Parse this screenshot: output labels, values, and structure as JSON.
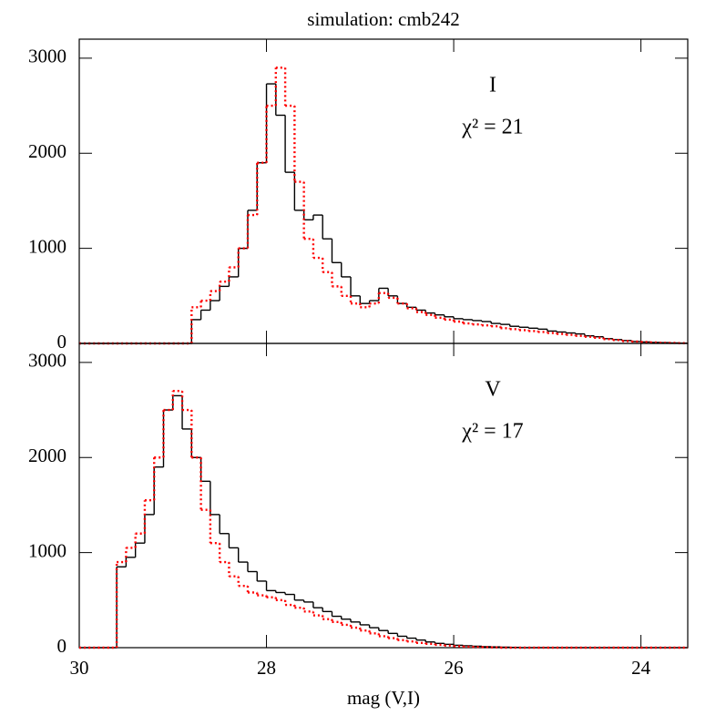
{
  "chart_data": [
    {
      "type": "histogram",
      "title": "simulation: cmb242",
      "annotations": [
        "I",
        "χ² = 21"
      ],
      "bins": [
        30,
        29.9,
        29.8,
        29.7,
        29.6,
        29.5,
        29.4,
        29.3,
        29.2,
        29.1,
        29,
        28.9,
        28.8,
        28.7,
        28.6,
        28.5,
        28.4,
        28.3,
        28.2,
        28.1,
        28,
        27.9,
        27.8,
        27.7,
        27.6,
        27.5,
        27.4,
        27.3,
        27.2,
        27.1,
        27,
        26.9,
        26.8,
        26.7,
        26.6,
        26.5,
        26.4,
        26.3,
        26.2,
        26.1,
        26,
        25.9,
        25.8,
        25.7,
        25.6,
        25.5,
        25.4,
        25.3,
        25.2,
        25.1,
        25,
        24.9,
        24.8,
        24.7,
        24.6,
        24.5,
        24.4,
        24.3,
        24.2,
        24.1,
        24,
        23.9,
        23.8,
        23.7,
        23.6,
        23.5
      ],
      "series": [
        {
          "color": "#000000",
          "style": "solid",
          "values": [
            0,
            0,
            0,
            0,
            0,
            0,
            0,
            0,
            0,
            0,
            0,
            0,
            250,
            350,
            450,
            600,
            700,
            1000,
            1400,
            1900,
            2730,
            2400,
            1800,
            1400,
            1300,
            1350,
            1100,
            850,
            700,
            500,
            420,
            450,
            580,
            500,
            420,
            380,
            350,
            320,
            300,
            280,
            260,
            250,
            240,
            230,
            210,
            200,
            180,
            170,
            160,
            150,
            130,
            120,
            110,
            100,
            80,
            70,
            50,
            40,
            30,
            20,
            15,
            10,
            8,
            5,
            3
          ]
        },
        {
          "color": "#ff0000",
          "style": "dotted",
          "values": [
            0,
            0,
            0,
            0,
            0,
            0,
            0,
            0,
            0,
            0,
            0,
            0,
            380,
            450,
            550,
            650,
            800,
            1000,
            1350,
            1900,
            2500,
            2900,
            2500,
            1700,
            1100,
            900,
            750,
            600,
            500,
            420,
            380,
            420,
            530,
            480,
            420,
            370,
            330,
            300,
            270,
            250,
            230,
            210,
            200,
            190,
            180,
            160,
            150,
            140,
            130,
            120,
            110,
            100,
            90,
            80,
            70,
            60,
            45,
            35,
            25,
            20,
            15,
            10,
            7,
            5,
            3
          ]
        }
      ],
      "xlim": [
        30,
        23.5
      ],
      "xticks": [
        30,
        28,
        26,
        24
      ],
      "ylim": [
        0,
        3200
      ],
      "yticks": [
        0,
        1000,
        2000,
        3000
      ]
    },
    {
      "type": "histogram",
      "annotations": [
        "V",
        "χ² = 17"
      ],
      "xlabel": "mag (V,I)",
      "bins": [
        30,
        29.9,
        29.8,
        29.7,
        29.6,
        29.5,
        29.4,
        29.3,
        29.2,
        29.1,
        29,
        28.9,
        28.8,
        28.7,
        28.6,
        28.5,
        28.4,
        28.3,
        28.2,
        28.1,
        28,
        27.9,
        27.8,
        27.7,
        27.6,
        27.5,
        27.4,
        27.3,
        27.2,
        27.1,
        27,
        26.9,
        26.8,
        26.7,
        26.6,
        26.5,
        26.4,
        26.3,
        26.2,
        26.1,
        26,
        25.9,
        25.8,
        25.7,
        25.6,
        25.5,
        25.4,
        25.3,
        25.2,
        25.1,
        25,
        24.9,
        24.8,
        24.7,
        24.6,
        24.5,
        24.4,
        24.3,
        24.2,
        24.1,
        24,
        23.9,
        23.8,
        23.7,
        23.6,
        23.5
      ],
      "series": [
        {
          "color": "#000000",
          "style": "solid",
          "values": [
            0,
            0,
            0,
            0,
            850,
            950,
            1100,
            1400,
            1900,
            2500,
            2650,
            2300,
            2000,
            1750,
            1400,
            1200,
            1050,
            900,
            800,
            700,
            600,
            580,
            560,
            500,
            480,
            420,
            380,
            330,
            300,
            270,
            240,
            210,
            180,
            150,
            120,
            100,
            80,
            60,
            45,
            35,
            25,
            20,
            15,
            10,
            8,
            5,
            3,
            0,
            0,
            0,
            0,
            0,
            0,
            0,
            0,
            0,
            0,
            0,
            0,
            0,
            0,
            0,
            0,
            0,
            0
          ]
        },
        {
          "color": "#ff0000",
          "style": "dotted",
          "values": [
            0,
            0,
            0,
            0,
            900,
            1050,
            1200,
            1550,
            2000,
            2500,
            2700,
            2500,
            2000,
            1450,
            1100,
            900,
            750,
            650,
            580,
            550,
            530,
            500,
            450,
            420,
            380,
            340,
            300,
            270,
            240,
            210,
            180,
            150,
            120,
            100,
            80,
            65,
            50,
            40,
            30,
            22,
            15,
            10,
            8,
            5,
            3,
            0,
            0,
            0,
            0,
            0,
            0,
            0,
            0,
            0,
            0,
            0,
            0,
            0,
            0,
            0,
            0,
            0,
            0,
            0,
            0
          ]
        }
      ],
      "xlim": [
        30,
        23.5
      ],
      "xticks": [
        30,
        28,
        26,
        24
      ],
      "ylim": [
        0,
        3200
      ],
      "yticks": [
        0,
        1000,
        2000,
        3000
      ]
    }
  ]
}
